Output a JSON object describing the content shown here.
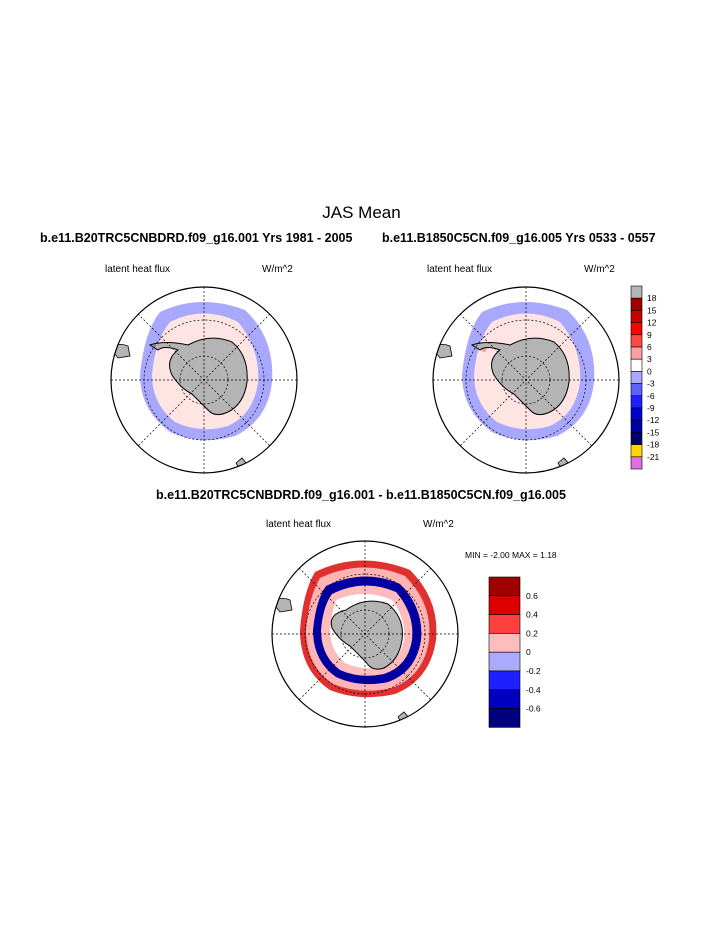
{
  "figure": {
    "title": "JAS Mean",
    "panels": [
      {
        "case_title": "b.e11.B20TRC5CNBDRD.f09_g16.001  Yrs 1981 - 2005",
        "left_label": "latent heat flux",
        "right_label": "W/m^2"
      },
      {
        "case_title": "b.e11.B1850C5CN.f09_g16.005  Yrs 0533 - 0557",
        "left_label": "latent heat flux",
        "right_label": "W/m^2"
      },
      {
        "case_title": "b.e11.B20TRC5CNBDRD.f09_g16.001 - b.e11.B1850C5CN.f09_g16.005",
        "left_label": "latent heat flux",
        "right_label": "W/m^2",
        "minmax_label": "MIN =  -2.00 MAX =   1.18"
      }
    ]
  },
  "colors": {
    "land": "#b4b4b4",
    "light_blue": "#a8a8ff",
    "light_pink": "#ffe4e4",
    "pink": "#ffb4b4",
    "red": "#e03030",
    "dark_red": "#a00000",
    "blue": "#2020ff",
    "navy": "#000080"
  },
  "chart_data": [
    {
      "type": "heatmap",
      "projection": "south polar stereographic",
      "variable": "latent heat flux",
      "units": "W/m^2",
      "colorbar": {
        "levels": [
          "18",
          "15",
          "12",
          "9",
          "6",
          "3",
          "0",
          "-3",
          "-6",
          "-9",
          "-12",
          "-15",
          "-18",
          "-21"
        ],
        "colors": [
          "#b4b4b4",
          "#a00000",
          "#c80000",
          "#ff0000",
          "#ff4848",
          "#ffa0a0",
          "#ffffff",
          "#a8a8ff",
          "#6060ff",
          "#2020ff",
          "#0000d0",
          "#0000a0",
          "#000070",
          "#ffd700",
          "#e070e0"
        ]
      }
    },
    {
      "type": "heatmap",
      "projection": "south polar stereographic",
      "variable": "latent heat flux",
      "units": "W/m^2",
      "min": -2.0,
      "max": 1.18,
      "colorbar": {
        "levels": [
          "0.6",
          "0.4",
          "0.2",
          "0",
          "-0.2",
          "-0.4",
          "-0.6"
        ],
        "colors": [
          "#a00000",
          "#dc0000",
          "#ff4040",
          "#ffbcbc",
          "#aaaaff",
          "#2020ff",
          "#0000c0",
          "#000080"
        ]
      }
    }
  ]
}
